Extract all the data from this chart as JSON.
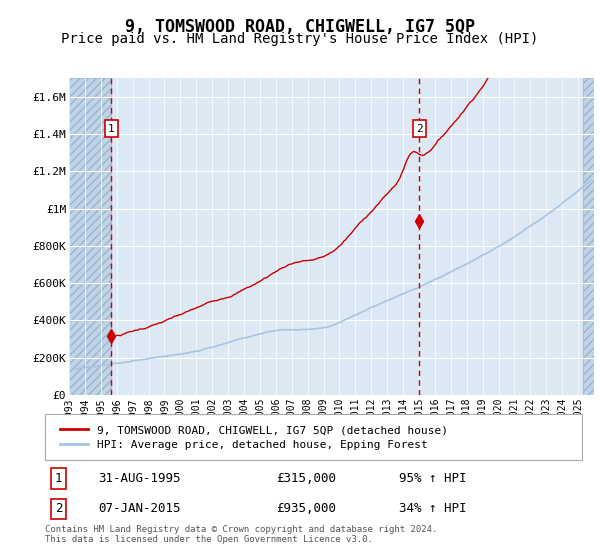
{
  "title": "9, TOMSWOOD ROAD, CHIGWELL, IG7 5QP",
  "subtitle": "Price paid vs. HM Land Registry's House Price Index (HPI)",
  "title_fontsize": 12,
  "subtitle_fontsize": 10,
  "sale1_date_num": 1995.664,
  "sale1_price": 315000,
  "sale1_label": "1",
  "sale2_date_num": 2015.019,
  "sale2_price": 935000,
  "sale2_label": "2",
  "hpi_color": "#aac4e0",
  "price_color": "#cc0000",
  "dashed_color": "#cc0000",
  "plot_bg_color": "#dce9f5",
  "hatch_color": "#c0d4e8",
  "ylim_min": 0,
  "ylim_max": 1700000,
  "legend_label_price": "9, TOMSWOOD ROAD, CHIGWELL, IG7 5QP (detached house)",
  "legend_label_hpi": "HPI: Average price, detached house, Epping Forest",
  "table_row1": [
    "1",
    "31-AUG-1995",
    "£315,000",
    "95% ↑ HPI"
  ],
  "table_row2": [
    "2",
    "07-JAN-2015",
    "£935,000",
    "34% ↑ HPI"
  ],
  "footnote": "Contains HM Land Registry data © Crown copyright and database right 2024.\nThis data is licensed under the Open Government Licence v3.0.",
  "ytick_labels": [
    "£0",
    "£200K",
    "£400K",
    "£600K",
    "£800K",
    "£1M",
    "£1.2M",
    "£1.4M",
    "£1.6M"
  ],
  "ytick_values": [
    0,
    200000,
    400000,
    600000,
    800000,
    1000000,
    1200000,
    1400000,
    1600000
  ],
  "xmin": 1993.0,
  "xmax": 2026.0,
  "hatch_end": 2025.3
}
